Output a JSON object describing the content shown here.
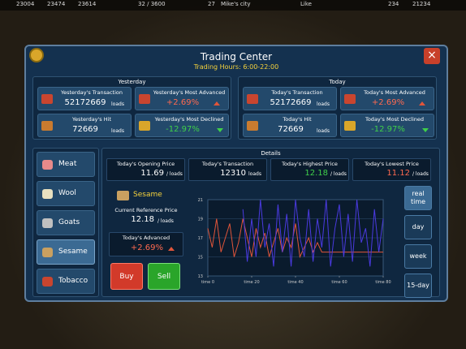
{
  "status_bar": {
    "items": [
      "23004",
      "23474",
      "23614",
      "32 / 3600",
      "27",
      "Mike's city",
      "Like",
      "234",
      "21234"
    ]
  },
  "header": {
    "title": "Trading Center",
    "subtitle": "Trading Hours: 6:00-22:00"
  },
  "yesterday": {
    "title": "Yesterday",
    "cards": [
      {
        "label": "Yesterday's Transaction",
        "value": "52172669",
        "unit": "loads"
      },
      {
        "label": "Yesterday's Most Advanced",
        "value": "+2.69%"
      },
      {
        "label": "Yesterday's Hit",
        "value": "72669",
        "unit": "loads"
      },
      {
        "label": "Yesterday's Most Declined",
        "value": "-12.97%"
      }
    ]
  },
  "today": {
    "title": "Today",
    "cards": [
      {
        "label": "Today's Transaction",
        "value": "52172669",
        "unit": "loads"
      },
      {
        "label": "Today's Most Advanced",
        "value": "+2.69%"
      },
      {
        "label": "Today's Hit",
        "value": "72669",
        "unit": "loads"
      },
      {
        "label": "Today's Most Declined",
        "value": "-12.97%"
      }
    ]
  },
  "goods": [
    "Meat",
    "Wool",
    "Goats",
    "Sesame",
    "Tobacco"
  ],
  "details": {
    "title": "Details",
    "stats": [
      {
        "label": "Today's Opening Price",
        "value": "11.69",
        "unit": "/ loads"
      },
      {
        "label": "Today's Transaction",
        "value": "12310",
        "unit": "loads"
      },
      {
        "label": "Today's Highest Price",
        "value": "12.18",
        "unit": "/ loads"
      },
      {
        "label": "Today's Lowest Price",
        "value": "11.12",
        "unit": "/ loads"
      }
    ]
  },
  "selected": {
    "name": "Sesame",
    "ref_label": "Current Reference Price",
    "ref_value": "12.18",
    "ref_unit": "/ loads",
    "adv_label": "Today's Advanced",
    "adv_value": "+2.69%"
  },
  "actions": [
    "Buy",
    "Sell"
  ],
  "periods": [
    "real time",
    "day",
    "week",
    "15-day"
  ],
  "price_chart": {
    "type": "line",
    "xlim": [
      0,
      80
    ],
    "ylim": [
      13,
      21
    ],
    "yticks": [
      13,
      15,
      17,
      19,
      21
    ],
    "xticks": [
      {
        "value": 0,
        "label": "time 0"
      },
      {
        "value": 20,
        "label": "time 20"
      },
      {
        "value": 40,
        "label": "time 40"
      },
      {
        "value": 60,
        "label": "time 60"
      },
      {
        "value": 80,
        "label": "time 80"
      }
    ],
    "series": [
      {
        "color": "#e0553a",
        "x": [
          0,
          2,
          4,
          6,
          8,
          10,
          12,
          14,
          16,
          18,
          20,
          22,
          24,
          26,
          28,
          30,
          32,
          34,
          36,
          38,
          40,
          42,
          44,
          46,
          48,
          50,
          52,
          54,
          80
        ],
        "values": [
          18,
          16,
          19,
          15.5,
          17,
          18.5,
          15,
          16.5,
          19,
          17,
          15,
          18,
          16,
          17.5,
          15,
          16.5,
          18,
          15.5,
          17,
          16,
          18.5,
          15,
          16,
          17,
          15.5,
          16.5,
          15.5,
          15.5,
          15.5
        ]
      },
      {
        "color": "#4a3ae0",
        "x": [
          16,
          18,
          20,
          22,
          24,
          26,
          28,
          30,
          32,
          34,
          36,
          38,
          40,
          42,
          44,
          46,
          48,
          50,
          52,
          54,
          56,
          58,
          60,
          62,
          64,
          66,
          68,
          70,
          72,
          74,
          76,
          78,
          80
        ],
        "values": [
          20,
          14.5,
          19,
          15,
          21,
          16,
          18.5,
          14,
          20.5,
          15.5,
          19.5,
          14,
          21,
          17,
          15,
          20,
          14.5,
          19,
          16,
          21,
          14,
          18,
          20.5,
          15,
          19.5,
          14.5,
          21,
          16.5,
          18,
          14,
          20,
          15.5,
          19
        ]
      }
    ]
  }
}
